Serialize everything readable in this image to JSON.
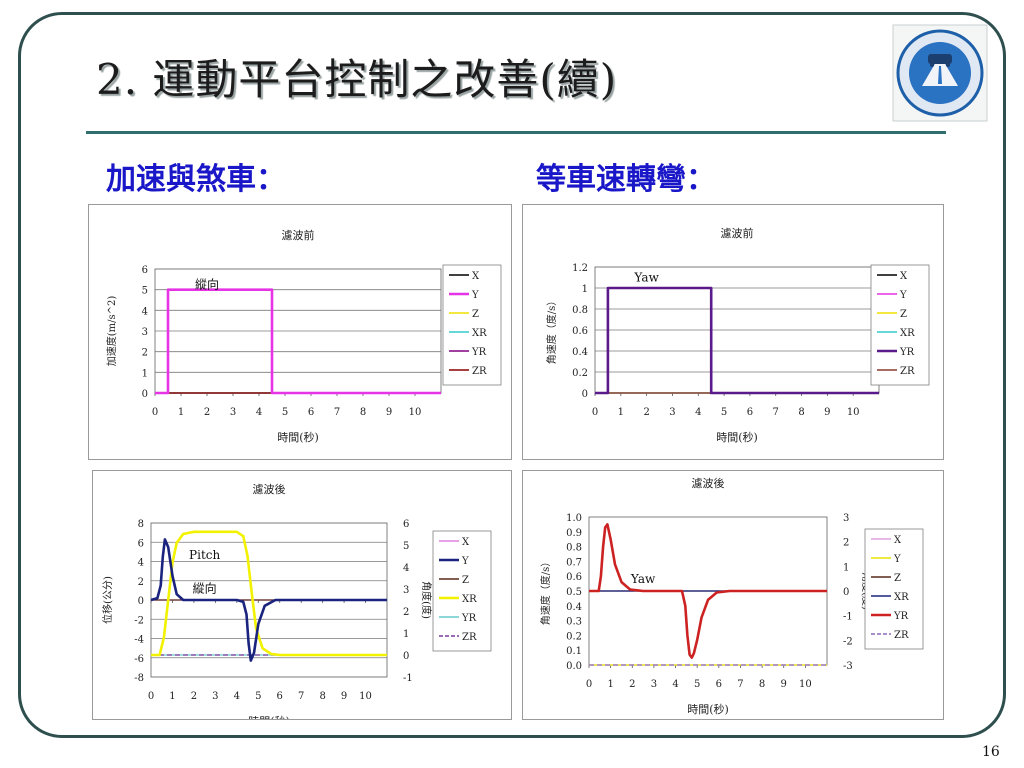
{
  "slide": {
    "title": "2. 運動平台控制之改善(續)",
    "left_heading": "加速與煞車：",
    "right_heading": "等車速轉彎：",
    "page_number": "16"
  },
  "chart_data": [
    {
      "id": "accel-before",
      "type": "line",
      "title": "濾波前",
      "xlabel": "時間(秒)",
      "ylabel": "加速度(m/s^2)",
      "xlim": [
        0,
        11
      ],
      "ylim": [
        0,
        6
      ],
      "xticks": [
        "0",
        "1",
        "2",
        "3",
        "4",
        "5",
        "6",
        "7",
        "8",
        "9",
        "10"
      ],
      "yticks": [
        "0",
        "1",
        "2",
        "3",
        "4",
        "5",
        "6"
      ],
      "grid": true,
      "legend_position": "right",
      "annotations": [
        {
          "text": "縱向",
          "x": 2.0,
          "y": 5.25
        }
      ],
      "series": [
        {
          "name": "X",
          "color": "#000000",
          "dash": false,
          "x": [
            0,
            11
          ],
          "y": [
            0,
            0
          ]
        },
        {
          "name": "Y",
          "color": "#e633e6",
          "dash": false,
          "x": [
            0,
            0.5,
            0.5,
            4.5,
            4.5,
            11
          ],
          "y": [
            0,
            0,
            5,
            5,
            0,
            0
          ]
        },
        {
          "name": "Z",
          "color": "#f0e000",
          "dash": false,
          "x": [
            0,
            11
          ],
          "y": [
            0,
            0
          ]
        },
        {
          "name": "XR",
          "color": "#33cccc",
          "dash": false,
          "x": [
            0,
            11
          ],
          "y": [
            0,
            0
          ]
        },
        {
          "name": "YR",
          "color": "#800080",
          "dash": false,
          "x": [
            0,
            11
          ],
          "y": [
            0,
            0
          ]
        },
        {
          "name": "ZR",
          "color": "#8b0000",
          "dash": false,
          "x": [
            0,
            11
          ],
          "y": [
            0,
            0
          ]
        }
      ]
    },
    {
      "id": "turn-before",
      "type": "line",
      "title": "濾波前",
      "xlabel": "時間(秒)",
      "ylabel": "角速度（度/s）",
      "xlim": [
        0,
        11
      ],
      "ylim": [
        0,
        1.2
      ],
      "xticks": [
        "0",
        "1",
        "2",
        "3",
        "4",
        "5",
        "6",
        "7",
        "8",
        "9",
        "10"
      ],
      "yticks": [
        "0",
        "0.2",
        "0.4",
        "0.6",
        "0.8",
        "1",
        "1.2"
      ],
      "grid": true,
      "legend_position": "right",
      "annotations": [
        {
          "text": "Yaw",
          "x": 2.0,
          "y": 1.1
        }
      ],
      "series": [
        {
          "name": "X",
          "color": "#000000",
          "dash": false,
          "x": [
            0,
            11
          ],
          "y": [
            0,
            0
          ]
        },
        {
          "name": "Y",
          "color": "#e633e6",
          "dash": false,
          "x": [
            0,
            11
          ],
          "y": [
            0,
            0
          ]
        },
        {
          "name": "Z",
          "color": "#f0e000",
          "dash": false,
          "x": [
            0,
            11
          ],
          "y": [
            0,
            0
          ]
        },
        {
          "name": "XR",
          "color": "#33cccc",
          "dash": false,
          "x": [
            0,
            11
          ],
          "y": [
            0,
            0
          ]
        },
        {
          "name": "YR",
          "color": "#5a1a8a",
          "dash": false,
          "x": [
            0,
            0.5,
            0.5,
            4.5,
            4.5,
            11
          ],
          "y": [
            0,
            0,
            1,
            1,
            0,
            0
          ]
        },
        {
          "name": "ZR",
          "color": "#8b3a2a",
          "dash": false,
          "x": [
            0,
            11
          ],
          "y": [
            0,
            0
          ]
        }
      ]
    },
    {
      "id": "accel-after",
      "type": "line",
      "title": "濾波後",
      "xlabel": "時間(秒)",
      "ylabel": "位移(公分)",
      "y2label": "角度(度)",
      "xlim": [
        0,
        11
      ],
      "ylim": [
        -8,
        8
      ],
      "y2lim": [
        -1,
        6
      ],
      "xticks": [
        "0",
        "1",
        "2",
        "3",
        "4",
        "5",
        "6",
        "7",
        "8",
        "9",
        "10"
      ],
      "yticks": [
        "-8",
        "-6",
        "-4",
        "-2",
        "0",
        "2",
        "4",
        "6",
        "8"
      ],
      "y2ticks": [
        "-1",
        "0",
        "1",
        "2",
        "3",
        "4",
        "5",
        "6"
      ],
      "grid": true,
      "legend_position": "right",
      "annotations": [
        {
          "text": "Pitch",
          "x": 2.5,
          "y": 4.7
        },
        {
          "text": "縱向",
          "x": 2.5,
          "y": 1.2
        }
      ],
      "series": [
        {
          "name": "X",
          "color": "#e080e0",
          "dash": false,
          "axis": "left",
          "x": [
            0,
            11
          ],
          "y": [
            0,
            0
          ]
        },
        {
          "name": "Y",
          "color": "#1a237e",
          "dash": false,
          "axis": "left",
          "x": [
            0,
            0.3,
            0.45,
            0.55,
            0.65,
            0.8,
            1.0,
            1.2,
            1.5,
            3.0,
            4.0,
            4.3,
            4.45,
            4.55,
            4.65,
            4.8,
            5.0,
            5.3,
            5.8,
            11
          ],
          "y": [
            0,
            0.2,
            1.5,
            4.5,
            6.3,
            5.5,
            2.5,
            0.6,
            0,
            0,
            0,
            -0.2,
            -1.5,
            -4.5,
            -6.3,
            -5.5,
            -2.5,
            -0.6,
            0,
            0
          ]
        },
        {
          "name": "Z",
          "color": "#5a2a1a",
          "dash": false,
          "axis": "left",
          "x": [
            0,
            11
          ],
          "y": [
            0,
            0
          ]
        },
        {
          "name": "XR",
          "color": "#f2f200",
          "dash": false,
          "axis": "right",
          "x": [
            0,
            0.4,
            0.6,
            0.8,
            1.0,
            1.2,
            1.5,
            2.0,
            3.5,
            4.0,
            4.3,
            4.5,
            4.7,
            4.9,
            5.2,
            5.6,
            6.0,
            11
          ],
          "y": [
            0,
            0,
            0.8,
            2.5,
            4.2,
            5.1,
            5.5,
            5.6,
            5.6,
            5.6,
            5.4,
            4.5,
            2.8,
            1.2,
            0.3,
            0.05,
            0,
            0
          ]
        },
        {
          "name": "YR",
          "color": "#66cccc",
          "dash": false,
          "axis": "right",
          "x": [
            0,
            11
          ],
          "y": [
            0,
            0
          ]
        },
        {
          "name": "ZR",
          "color": "#7a3a9a",
          "dash": true,
          "axis": "right",
          "x": [
            0,
            11
          ],
          "y": [
            0,
            0
          ]
        }
      ]
    },
    {
      "id": "turn-after",
      "type": "line",
      "title": "濾波後",
      "xlabel": "時間(秒)",
      "ylabel": "角速度（度/s）",
      "y2label": "角度(度)",
      "xlim": [
        0,
        11
      ],
      "ylim": [
        0,
        1.0
      ],
      "y2lim": [
        -3,
        3
      ],
      "xticks": [
        "0",
        "1",
        "2",
        "3",
        "4",
        "5",
        "6",
        "7",
        "8",
        "9",
        "10"
      ],
      "yticks": [
        "0.0",
        "0.1",
        "0.2",
        "0.3",
        "0.4",
        "0.5",
        "0.6",
        "0.7",
        "0.8",
        "0.9",
        "1.0"
      ],
      "y2ticks": [
        "-3",
        "-2",
        "-1",
        "0",
        "1",
        "2",
        "3"
      ],
      "grid": false,
      "legend_position": "right",
      "annotations": [
        {
          "text": "Yaw",
          "x": 2.5,
          "y": 0.58
        }
      ],
      "series": [
        {
          "name": "X",
          "color": "#e0a0e0",
          "dash": false,
          "axis": "left",
          "x": [
            0,
            11
          ],
          "y": [
            0,
            0
          ]
        },
        {
          "name": "Y",
          "color": "#e6e600",
          "dash": false,
          "axis": "left",
          "x": [
            0,
            11
          ],
          "y": [
            0,
            0
          ]
        },
        {
          "name": "Z",
          "color": "#5a2a1a",
          "dash": false,
          "axis": "left",
          "x": [
            0,
            11
          ],
          "y": [
            0.5,
            0.5
          ]
        },
        {
          "name": "XR",
          "color": "#1a237e",
          "dash": false,
          "axis": "left",
          "x": [
            0,
            11
          ],
          "y": [
            0.5,
            0.5
          ]
        },
        {
          "name": "YR",
          "color": "#cc2222",
          "dash": false,
          "axis": "left",
          "x": [
            0,
            0.45,
            0.55,
            0.65,
            0.75,
            0.85,
            1.0,
            1.2,
            1.5,
            1.9,
            2.5,
            4.3,
            4.45,
            4.55,
            4.65,
            4.75,
            4.85,
            5.0,
            5.2,
            5.5,
            5.9,
            6.5,
            11
          ],
          "y": [
            0.5,
            0.5,
            0.6,
            0.8,
            0.93,
            0.95,
            0.85,
            0.68,
            0.56,
            0.51,
            0.5,
            0.5,
            0.4,
            0.2,
            0.07,
            0.05,
            0.08,
            0.17,
            0.32,
            0.44,
            0.49,
            0.5,
            0.5
          ]
        },
        {
          "name": "ZR",
          "color": "#8a6abf",
          "dash": true,
          "axis": "left",
          "x": [
            0,
            11
          ],
          "y": [
            0,
            0
          ]
        }
      ]
    }
  ]
}
